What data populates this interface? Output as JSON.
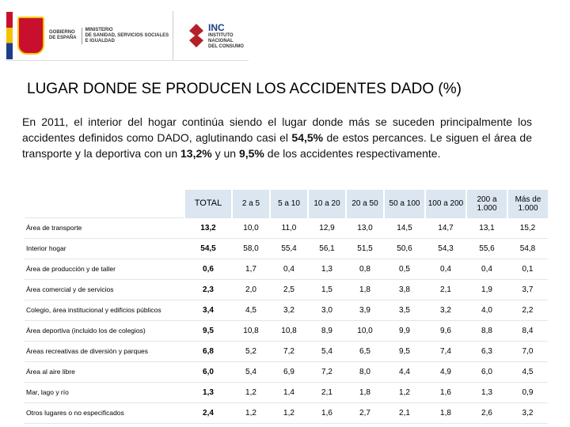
{
  "header": {
    "logo_left": {
      "line1": "GOBIERNO",
      "line2": "DE ESPAÑA",
      "ministry": [
        "MINISTERIO",
        "DE SANIDAD, SERVICIOS SOCIALES",
        "E IGUALDAD"
      ]
    },
    "logo_right": {
      "acronym": "INC",
      "lines": [
        "INSTITUTO",
        "NACIONAL",
        "DEL CONSUMO"
      ]
    }
  },
  "title": "LUGAR DONDE SE PRODUCEN LOS ACCIDENTES DADO (%)",
  "paragraph": [
    {
      "text": "En 2011, el interior del hogar continúa siendo el lugar donde más se suceden principalmente los accidentes definidos como DADO, aglutinando casi el ",
      "bold": false
    },
    {
      "text": "54,5%",
      "bold": true
    },
    {
      "text": " de estos percances. Le siguen el área de transporte y la deportiva con un ",
      "bold": false
    },
    {
      "text": "13,2%",
      "bold": true
    },
    {
      "text": " y un ",
      "bold": false
    },
    {
      "text": "9,5%",
      "bold": true
    },
    {
      "text": " de los accidentes respectivamente.",
      "bold": false
    }
  ],
  "table": {
    "columns": [
      "TOTAL",
      "2 a 5",
      "5 a 10",
      "10 a 20",
      "20 a 50",
      "50 a 100",
      "100 a 200",
      "200 a 1.000",
      "Más de 1.000"
    ],
    "rows": [
      [
        "Área de transporte",
        "13,2",
        "10,0",
        "11,0",
        "12,9",
        "13,0",
        "14,5",
        "14,7",
        "13,1",
        "15,2"
      ],
      [
        "Interior hogar",
        "54,5",
        "58,0",
        "55,4",
        "56,1",
        "51,5",
        "50,6",
        "54,3",
        "55,6",
        "54,8"
      ],
      [
        "Área de producción y de taller",
        "0,6",
        "1,7",
        "0,4",
        "1,3",
        "0,8",
        "0,5",
        "0,4",
        "0,4",
        "0,1"
      ],
      [
        "Área comercial y de servicios",
        "2,3",
        "2,0",
        "2,5",
        "1,5",
        "1,8",
        "3,8",
        "2,1",
        "1,9",
        "3,7"
      ],
      [
        "Colegio, área institucional y edificios públicos",
        "3,4",
        "4,5",
        "3,2",
        "3,0",
        "3,9",
        "3,5",
        "3,2",
        "4,0",
        "2,2"
      ],
      [
        "Área deportiva (incluido los de colegios)",
        "9,5",
        "10,8",
        "10,8",
        "8,9",
        "10,0",
        "9,9",
        "9,6",
        "8,8",
        "8,4"
      ],
      [
        "Áreas recreativas de diversión y parques",
        "6,8",
        "5,2",
        "7,2",
        "5,4",
        "6,5",
        "9,5",
        "7,4",
        "6,3",
        "7,0"
      ],
      [
        "Área al aire libre",
        "6,0",
        "5,4",
        "6,9",
        "7,2",
        "8,0",
        "4,4",
        "4,9",
        "6,0",
        "4,5"
      ],
      [
        "Mar, lago y río",
        "1,3",
        "1,2",
        "1,4",
        "2,1",
        "1,8",
        "1,2",
        "1,6",
        "1,3",
        "0,9"
      ],
      [
        "Otros lugares o no especificados",
        "2,4",
        "1,2",
        "1,2",
        "1,6",
        "2,7",
        "2,1",
        "1,8",
        "2,6",
        "3,2"
      ]
    ]
  }
}
